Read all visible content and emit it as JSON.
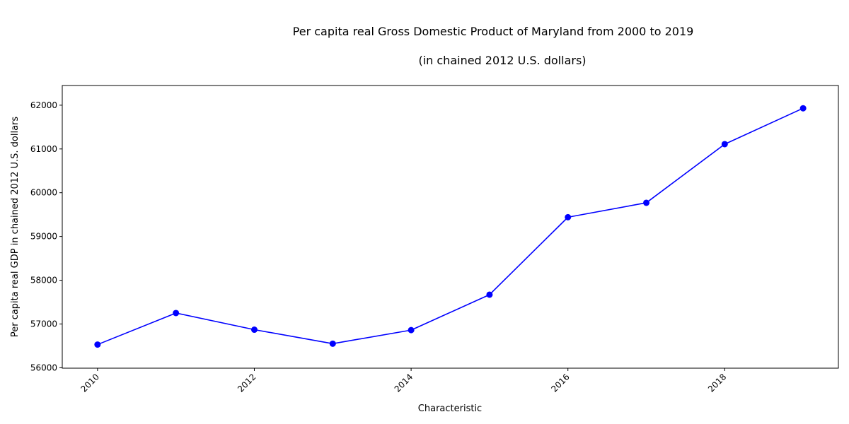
{
  "chart_data": {
    "type": "line",
    "title": "Per capita real Gross Domestic Product of Maryland from 2000 to 2019",
    "subtitle": "(in chained 2012 U.S. dollars)",
    "xlabel": "Characteristic",
    "ylabel": "Per capita real GDP in chained 2012 U.S. dollars",
    "x": [
      2010,
      2011,
      2012,
      2013,
      2014,
      2015,
      2016,
      2017,
      2018,
      2019
    ],
    "series": [
      {
        "values": [
          56530,
          57250,
          56870,
          56550,
          56860,
          57670,
          59440,
          59770,
          61110,
          61930
        ],
        "color": "#0000ff"
      }
    ],
    "xlim": [
      2009.55,
      2019.45
    ],
    "ylim": [
      55990,
      62450
    ],
    "xticks": [
      "2010",
      "2012",
      "2014",
      "2016",
      "2018"
    ],
    "yticks": [
      "56000",
      "57000",
      "58000",
      "59000",
      "60000",
      "61000",
      "62000"
    ],
    "grid": false,
    "legend": "none"
  }
}
